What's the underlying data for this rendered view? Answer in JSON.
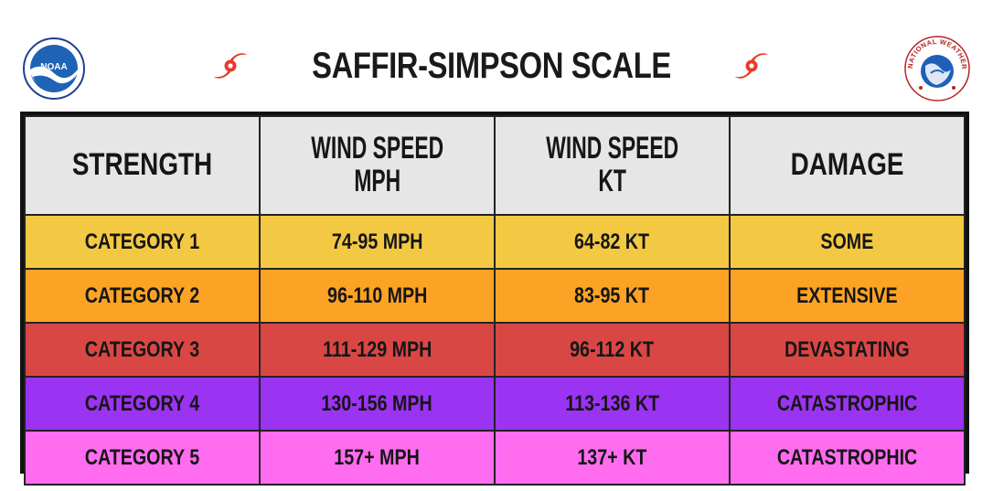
{
  "title": "SAFFIR-SIMPSON SCALE",
  "logos": {
    "left": "noaa-logo",
    "left_text": "NOAA",
    "right": "nws-logo",
    "right_text": "NATIONAL WEATHER SERVICE"
  },
  "icons": {
    "title_left": "hurricane-icon",
    "title_right": "hurricane-icon"
  },
  "colors": {
    "header_bg": "#e6e6e6",
    "cat1": "#f3c843",
    "cat2": "#fca326",
    "cat3": "#d94745",
    "cat4": "#9b33f2",
    "cat5": "#ff6cf0",
    "hurricane_icon": "#e83a2a"
  },
  "table": {
    "headers": [
      {
        "line1": "STRENGTH",
        "line2": ""
      },
      {
        "line1": "WIND SPEED",
        "line2": "MPH"
      },
      {
        "line1": "WIND SPEED",
        "line2": "KT"
      },
      {
        "line1": "DAMAGE",
        "line2": ""
      }
    ],
    "rows": [
      {
        "strength": "CATEGORY 1",
        "mph": "74-95 MPH",
        "kt": "64-82 KT",
        "damage": "SOME"
      },
      {
        "strength": "CATEGORY 2",
        "mph": "96-110 MPH",
        "kt": "83-95 KT",
        "damage": "EXTENSIVE"
      },
      {
        "strength": "CATEGORY 3",
        "mph": "111-129 MPH",
        "kt": "96-112 KT",
        "damage": "DEVASTATING"
      },
      {
        "strength": "CATEGORY 4",
        "mph": "130-156 MPH",
        "kt": "113-136 KT",
        "damage": "CATASTROPHIC"
      },
      {
        "strength": "CATEGORY 5",
        "mph": "157+ MPH",
        "kt": "137+ KT",
        "damage": "CATASTROPHIC"
      }
    ]
  }
}
